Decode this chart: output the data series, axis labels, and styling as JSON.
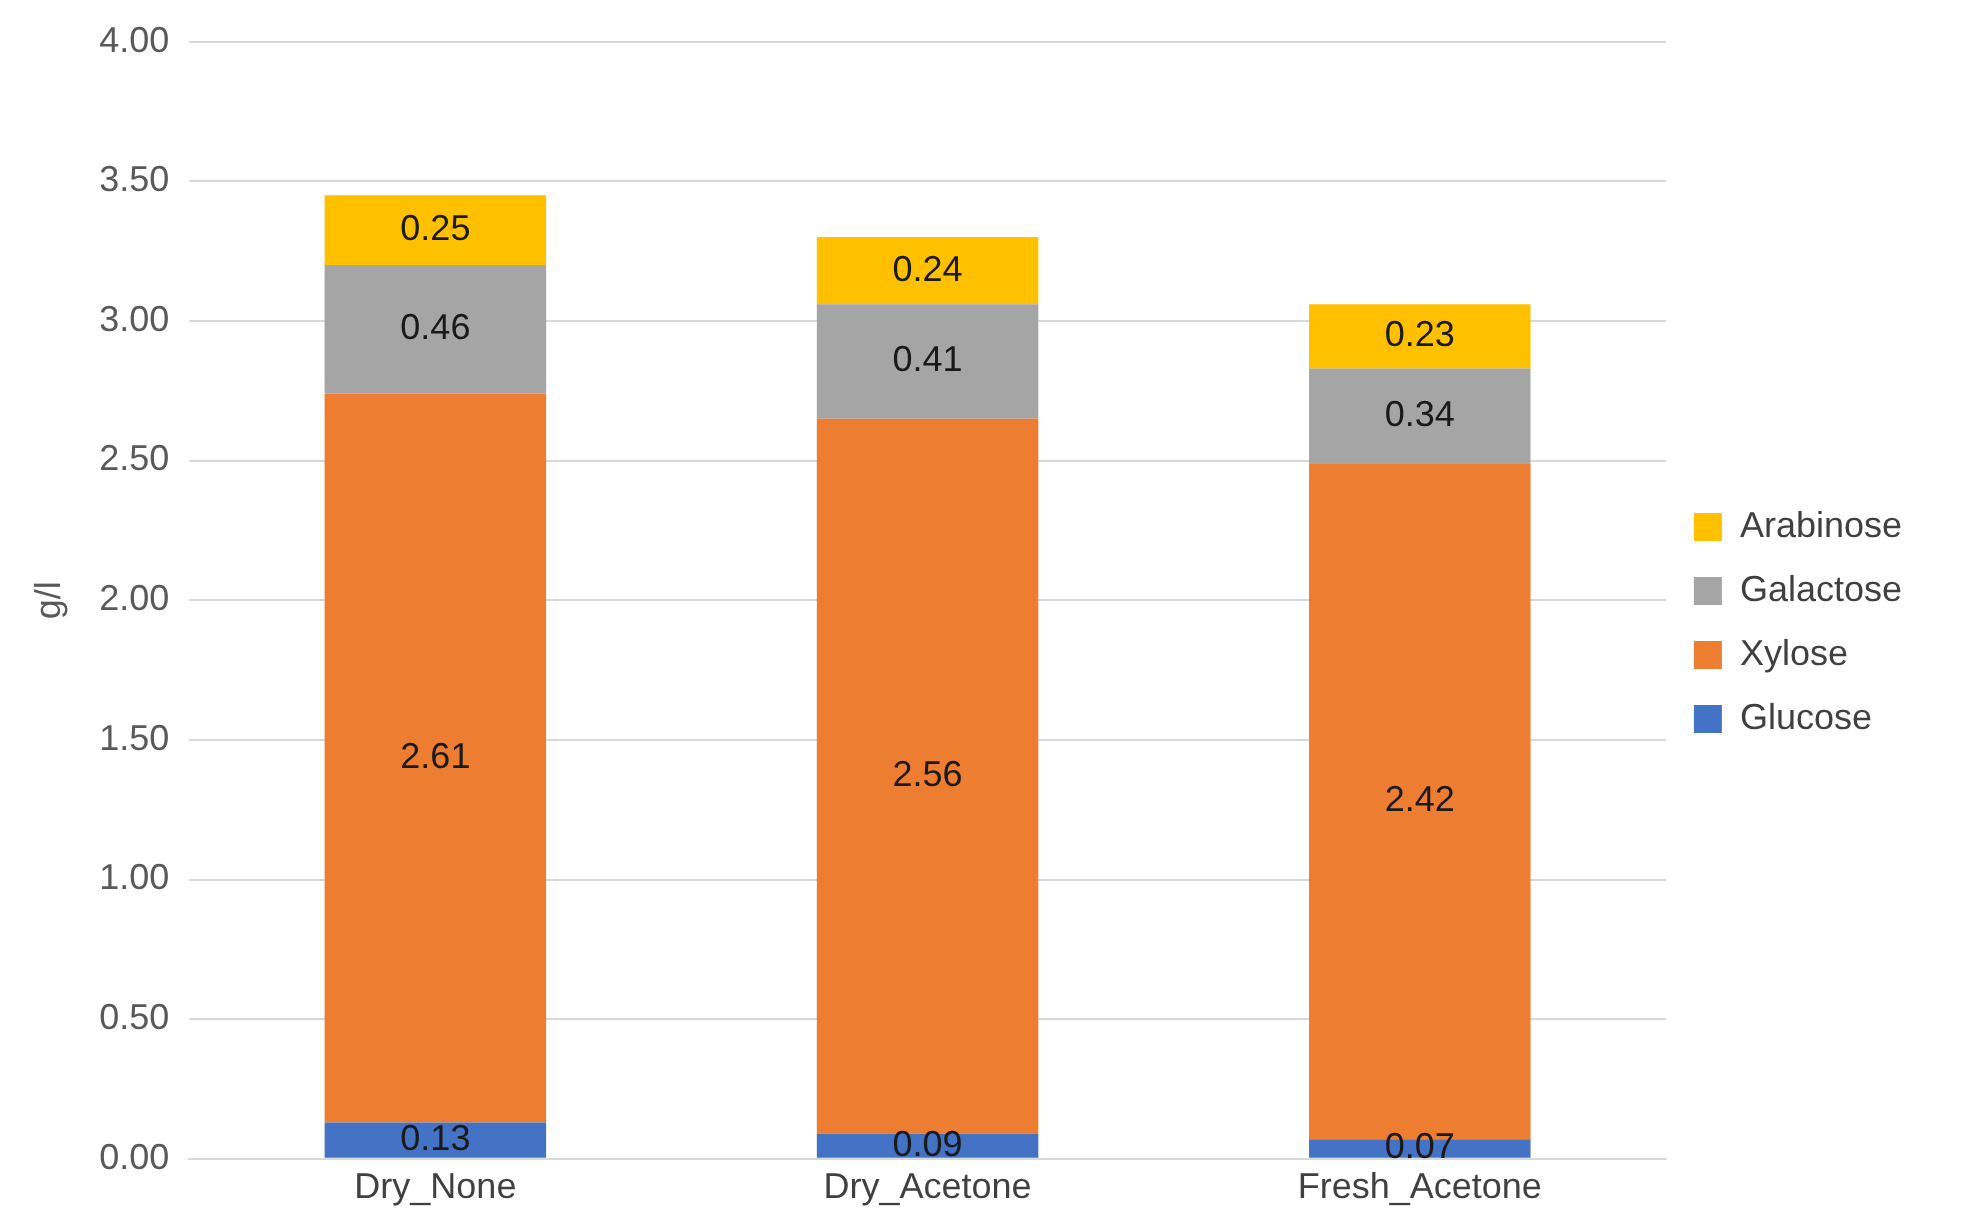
{
  "chart_data": {
    "type": "bar",
    "stacked": true,
    "ylabel": "g/l",
    "categories": [
      "Dry_None",
      "Dry_Acetone",
      "Fresh_Acetone"
    ],
    "series": [
      {
        "name": "Glucose",
        "color": "#4472c4",
        "values": [
          0.13,
          0.09,
          0.07
        ]
      },
      {
        "name": "Xylose",
        "color": "#ed7d31",
        "values": [
          2.61,
          2.56,
          2.42
        ]
      },
      {
        "name": "Galactose",
        "color": "#a5a5a5",
        "values": [
          0.46,
          0.41,
          0.34
        ]
      },
      {
        "name": "Arabinose",
        "color": "#ffc000",
        "values": [
          0.25,
          0.24,
          0.23
        ]
      }
    ],
    "ylim": [
      0,
      4
    ],
    "yticks": [
      {
        "value": 0,
        "label": "0.00"
      },
      {
        "value": 0.5,
        "label": "0.50"
      },
      {
        "value": 1,
        "label": "1.00"
      },
      {
        "value": 1.5,
        "label": "1.50"
      },
      {
        "value": 2,
        "label": "2.00"
      },
      {
        "value": 2.5,
        "label": "2.50"
      },
      {
        "value": 3,
        "label": "3.00"
      },
      {
        "value": 3.5,
        "label": "3.50"
      },
      {
        "value": 4,
        "label": "4.00"
      }
    ],
    "grid": "y",
    "legend": "right",
    "data_labels": true
  }
}
